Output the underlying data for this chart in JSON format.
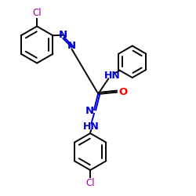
{
  "bg_color": "#ffffff",
  "bond_color": "#000000",
  "N_color": "#0000cc",
  "O_color": "#ff0000",
  "Cl_color": "#990099",
  "lw": 1.4,
  "fs": 8.5,
  "xlim": [
    0,
    10
  ],
  "ylim": [
    0,
    10
  ],
  "figsize": [
    2.5,
    2.5
  ],
  "dpi": 100
}
